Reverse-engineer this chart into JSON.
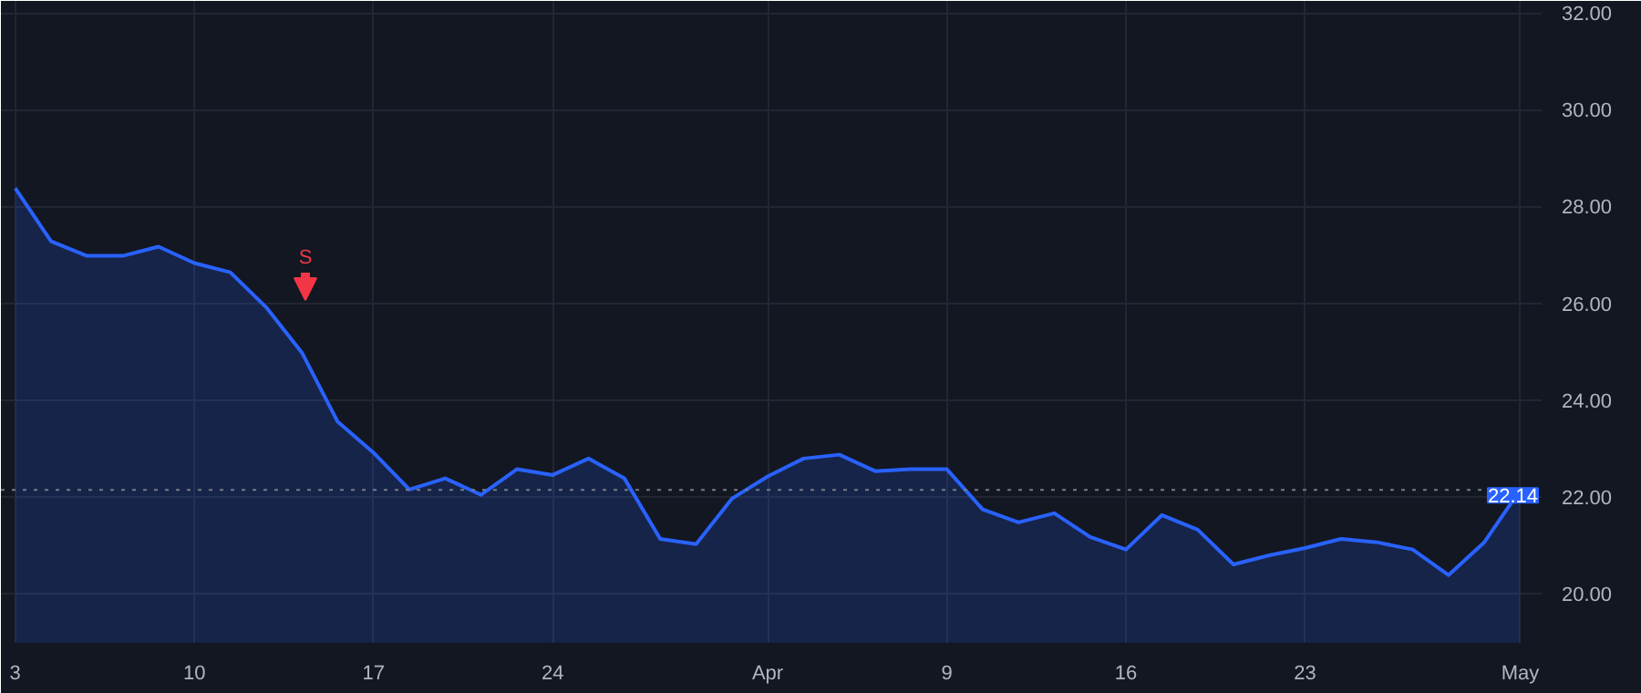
{
  "chart_data": {
    "type": "area",
    "categories": [
      "3",
      null,
      null,
      null,
      null,
      "10",
      null,
      null,
      null,
      null,
      "17",
      null,
      null,
      null,
      null,
      "24",
      null,
      null,
      null,
      null,
      null,
      "Apr",
      null,
      null,
      null,
      null,
      "9",
      null,
      null,
      null,
      null,
      "16",
      null,
      null,
      null,
      null,
      "23",
      null,
      null,
      null,
      null,
      null,
      "May"
    ],
    "series": [
      {
        "color": "#2962ff",
        "values": [
          28.38,
          27.28,
          26.98,
          26.98,
          27.17,
          26.83,
          26.64,
          25.92,
          24.98,
          23.55,
          22.91,
          22.15,
          22.38,
          22.04,
          22.57,
          22.45,
          22.79,
          22.38,
          21.13,
          21.02,
          21.96,
          22.42,
          22.79,
          22.87,
          22.53,
          22.57,
          22.57,
          21.74,
          21.47,
          21.66,
          21.17,
          20.91,
          21.62,
          21.32,
          20.6,
          20.79,
          20.94,
          21.13,
          21.06,
          20.91,
          20.38,
          21.06,
          22.14
        ]
      }
    ],
    "ylim": [
      18.98,
      32.25
    ],
    "yticks": [
      {
        "value": 20,
        "label": "20.00"
      },
      {
        "value": 22,
        "label": "22.00"
      },
      {
        "value": 24,
        "label": "24.00"
      },
      {
        "value": 26,
        "label": "26.00"
      },
      {
        "value": 28,
        "label": "28.00"
      },
      {
        "value": 30,
        "label": "30.00"
      },
      {
        "value": 32,
        "label": "32.00"
      }
    ],
    "ref_lines": [
      {
        "axis": "y",
        "value": 22.14,
        "label": "22.14",
        "color": "#787b86",
        "line_style": "dotted"
      }
    ],
    "annotations": [
      "S"
    ],
    "grid": true,
    "marker": "none",
    "line_style": "solid"
  }
}
